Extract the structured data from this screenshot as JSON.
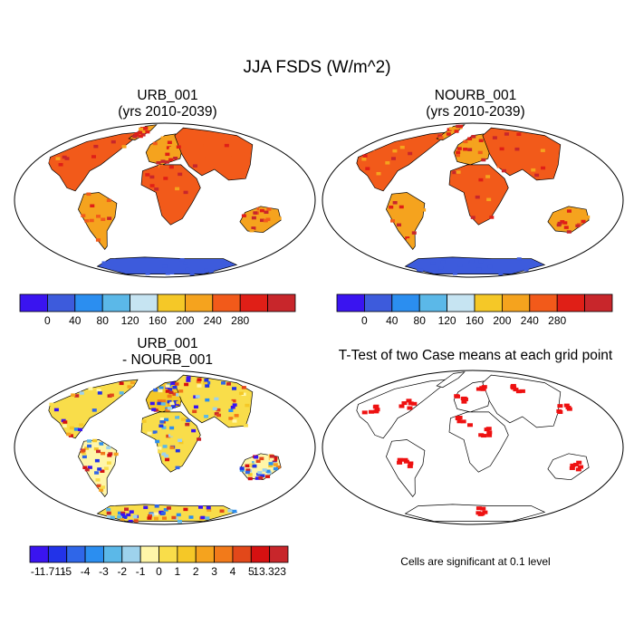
{
  "title": "JJA FSDS (W/m^2)",
  "panels": [
    {
      "title_lines": [
        "URB_001",
        "(yrs 2010-2039)"
      ]
    },
    {
      "title_lines": [
        "NOURB_001",
        "(yrs 2010-2039)"
      ]
    },
    {
      "title_lines": [
        "URB_001",
        "- NOURB_001"
      ]
    },
    {
      "title_lines": [
        "T-Test of two Case means at each grid point"
      ]
    }
  ],
  "note": "Cells are significant at 0.1 level",
  "chart_data": [
    {
      "type": "heatmap",
      "title": "URB_001 (yrs 2010-2039)",
      "colorbar": {
        "ticks": [
          "0",
          "40",
          "80",
          "120",
          "160",
          "200",
          "240",
          "280"
        ],
        "colors": [
          "#3a14f0",
          "#3d5bdc",
          "#2b8ef0",
          "#5bb8e8",
          "#c6e4f2",
          "#f5c827",
          "#f5a31e",
          "#f25a1a",
          "#e01f17",
          "#c8262b"
        ]
      },
      "regions": [
        {
          "name": "North America",
          "value": 265
        },
        {
          "name": "Greenland",
          "value": 225
        },
        {
          "name": "South America",
          "value": 205
        },
        {
          "name": "Europe",
          "value": 235
        },
        {
          "name": "Africa",
          "value": 255
        },
        {
          "name": "Asia",
          "value": 255
        },
        {
          "name": "Australia",
          "value": 205
        },
        {
          "name": "Antarctica",
          "value": 10
        }
      ]
    },
    {
      "type": "heatmap",
      "title": "NOURB_001 (yrs 2010-2039)",
      "colorbar": {
        "ticks": [
          "0",
          "40",
          "80",
          "120",
          "160",
          "200",
          "240",
          "280"
        ],
        "colors": [
          "#3a14f0",
          "#3d5bdc",
          "#2b8ef0",
          "#5bb8e8",
          "#c6e4f2",
          "#f5c827",
          "#f5a31e",
          "#f25a1a",
          "#e01f17",
          "#c8262b"
        ]
      },
      "regions": [
        {
          "name": "North America",
          "value": 265
        },
        {
          "name": "Greenland",
          "value": 225
        },
        {
          "name": "South America",
          "value": 205
        },
        {
          "name": "Europe",
          "value": 235
        },
        {
          "name": "Africa",
          "value": 255
        },
        {
          "name": "Asia",
          "value": 255
        },
        {
          "name": "Australia",
          "value": 205
        },
        {
          "name": "Antarctica",
          "value": 10
        }
      ]
    },
    {
      "type": "heatmap",
      "title": "URB_001 - NOURB_001",
      "colorbar": {
        "ticks": [
          "-11.711",
          "-5",
          "-4",
          "-3",
          "-2",
          "-1",
          "0",
          "1",
          "2",
          "3",
          "4",
          "5",
          "13.323"
        ],
        "colors": [
          "#3a14f0",
          "#2233e8",
          "#2f66e8",
          "#2b8ef0",
          "#5bb8e8",
          "#9ed2ec",
          "#fff6a8",
          "#f9dd4a",
          "#f5c827",
          "#f5a31e",
          "#f27a1a",
          "#e2481a",
          "#d61111",
          "#c8262b"
        ]
      },
      "regions": [
        {
          "name": "North America",
          "value": 0.5
        },
        {
          "name": "South America",
          "value": -1
        },
        {
          "name": "Europe",
          "value": 1.5
        },
        {
          "name": "Africa",
          "value": 0
        },
        {
          "name": "Asia",
          "value": 0.5
        },
        {
          "name": "Australia",
          "value": -1
        },
        {
          "name": "Antarctica",
          "value": 0.5
        }
      ]
    },
    {
      "type": "heatmap",
      "title": "T-Test of two Case means at each grid point",
      "significance_color": "#ee1111",
      "significant_regions": [
        "Western Europe",
        "Eastern Europe",
        "Central Asia",
        "Eastern North America",
        "Western North America",
        "West Africa",
        "Central Africa",
        "East Asia",
        "South America",
        "Australia",
        "Antarctica"
      ]
    }
  ]
}
